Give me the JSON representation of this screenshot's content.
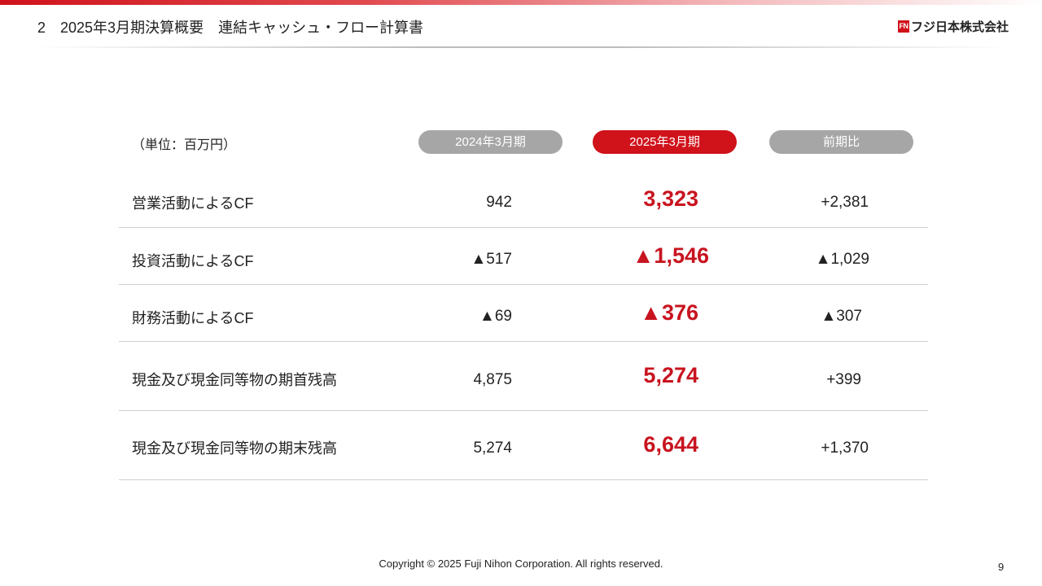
{
  "header": {
    "title": "2　2025年3月期決算概要　連結キャッシュ・フロー計算書",
    "logo_mark": "FN",
    "logo_text": "フジ日本株式会社"
  },
  "table": {
    "unit": "（単位：百万円）",
    "columns": [
      "2024年3月期",
      "2025年3月期",
      "前期比"
    ],
    "rows": [
      {
        "label": "営業活動によるCF",
        "prev": "942",
        "curr": "3,323",
        "diff": "+2,381"
      },
      {
        "label": "投資活動によるCF",
        "prev": "▲517",
        "curr": "▲1,546",
        "diff": "▲1,029"
      },
      {
        "label": "財務活動によるCF",
        "prev": "▲69",
        "curr": "▲376",
        "diff": "▲307"
      },
      {
        "label": "現金及び現金同等物の期首残高",
        "prev": "4,875",
        "curr": "5,274",
        "diff": "+399"
      },
      {
        "label": "現金及び現金同等物の期末残高",
        "prev": "5,274",
        "curr": "6,644",
        "diff": "+1,370"
      }
    ]
  },
  "footer": {
    "copyright": "Copyright © 2025 Fuji Nihon Corporation.  All rights reserved.",
    "page": "9"
  },
  "colors": {
    "accent": "#d0121b",
    "pill_gray": "#a6a6a6"
  }
}
